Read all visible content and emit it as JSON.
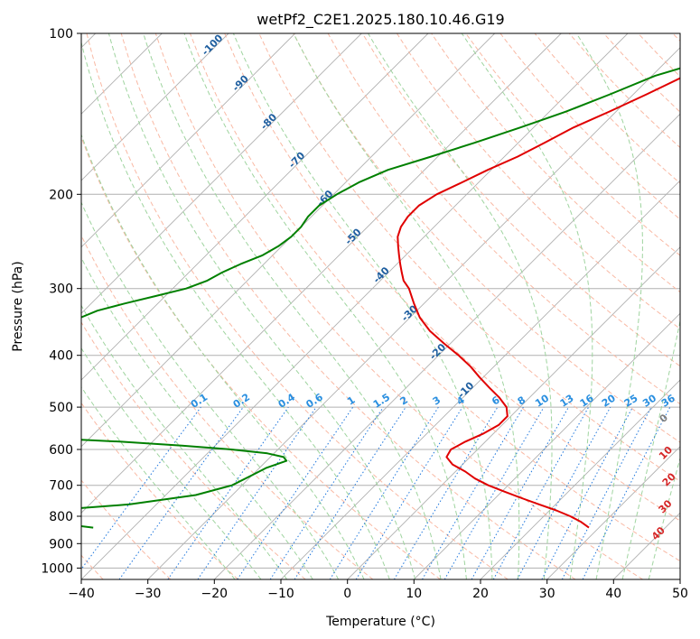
{
  "chart_data": {
    "type": "line",
    "title": "wetPf2_C2E1.2025.180.10.46.G19",
    "xlabel": "Temperature (°C)",
    "ylabel": "Pressure (hPa)",
    "xlim": [
      -40,
      50
    ],
    "ylim": [
      1050,
      100
    ],
    "y_scale": "log",
    "grid": true,
    "x_ticks": [
      -40,
      -30,
      -20,
      -10,
      0,
      10,
      20,
      30,
      40,
      50
    ],
    "y_ticks": [
      100,
      200,
      300,
      400,
      500,
      600,
      700,
      800,
      900,
      1000
    ],
    "series": [
      {
        "color": "#e00000",
        "p": [
          100,
          105,
          110,
          115,
          120,
          130,
          140,
          150,
          160,
          170,
          180,
          190,
          200,
          210,
          220,
          230,
          240,
          250,
          260,
          270,
          280,
          290,
          300,
          320,
          340,
          360,
          380,
          400,
          420,
          440,
          460,
          480,
          500,
          520,
          540,
          560,
          580,
          600,
          620,
          640,
          660,
          680,
          700,
          720,
          740,
          760,
          780,
          800,
          820,
          840
        ],
        "temperature": [
          -12.5,
          -14,
          -16.5,
          -20,
          -25,
          -28,
          -31,
          -34,
          -36,
          -38,
          -40.5,
          -42.5,
          -44.5,
          -45.5,
          -45.5,
          -45,
          -44,
          -42.5,
          -41,
          -39.5,
          -38,
          -36.5,
          -34.5,
          -31.5,
          -28.5,
          -25,
          -21,
          -17,
          -13.5,
          -10.5,
          -7.5,
          -4.5,
          -2,
          -0.5,
          -0.5,
          -1.5,
          -3,
          -4,
          -3.5,
          -1.5,
          1.5,
          4,
          7,
          10.5,
          14,
          17.5,
          21,
          24,
          26.5,
          28.5
        ]
      },
      {
        "color": "#008000",
        "p": [
          100,
          105,
          110,
          115,
          120,
          130,
          140,
          150,
          160,
          170,
          180,
          190,
          200,
          210,
          220,
          230,
          240,
          250,
          260,
          270,
          280,
          290,
          300,
          310,
          320,
          330,
          340,
          350,
          360,
          370,
          380,
          390,
          400,
          410,
          420,
          430,
          440,
          450,
          460,
          470,
          480,
          490,
          500,
          510,
          520,
          530,
          540,
          550,
          560,
          570,
          580,
          590,
          600,
          610,
          620,
          630,
          640,
          650,
          670,
          700,
          730,
          760,
          780,
          790,
          800,
          805,
          810,
          820,
          830,
          840
        ],
        "temperature": [
          -18,
          -20.5,
          -22.5,
          -26,
          -29.5,
          -33.5,
          -37.5,
          -42,
          -46.5,
          -51,
          -55.5,
          -58,
          -59.5,
          -60.5,
          -60.5,
          -60,
          -60,
          -60.5,
          -61.5,
          -63.5,
          -65,
          -66,
          -68,
          -71.5,
          -75,
          -78,
          -79.5,
          -80.5,
          -80.5,
          -80.5,
          -82,
          -85,
          -89,
          -93,
          -98,
          -111,
          -118,
          -117,
          -118,
          -109,
          -104,
          -100,
          -100,
          -103,
          -108,
          -112,
          -113,
          -100,
          -84,
          -68,
          -55,
          -45,
          -37,
          -31,
          -28,
          -27,
          -28,
          -29,
          -30,
          -31.5,
          -35.5,
          -44,
          -55,
          -65,
          -73,
          -70,
          -61,
          -55,
          -50,
          -46
        ]
      }
    ],
    "reference_lines": {
      "dry_adiabat_labels": [
        "-100",
        "-90",
        "-80",
        "-70",
        "-60",
        "-50",
        "-40",
        "-30",
        "-20",
        "-10"
      ],
      "moist_adiabat_labels": [
        "0",
        "10",
        "20",
        "30",
        "40"
      ],
      "mixing_ratio_labels": [
        "0.1",
        "0.2",
        "0.4",
        "0.6",
        "1",
        "1.5",
        "2",
        "3",
        "4",
        "6",
        "8",
        "10",
        "13",
        "16",
        "20",
        "25",
        "30",
        "36"
      ]
    },
    "colors": {
      "isotherm": "#b0b0b0",
      "dry_adiabat": "#f9b9a4",
      "moist_adiabat": "#9fd49f",
      "mixing_ratio": "#1f77dd",
      "dry_label": "#1f5fa0",
      "moist_label_zero": "#808080",
      "moist_label": "#d62728",
      "mixing_label": "#2a8fe0",
      "thick_dry_adiabat": "#e0c8a8"
    }
  }
}
